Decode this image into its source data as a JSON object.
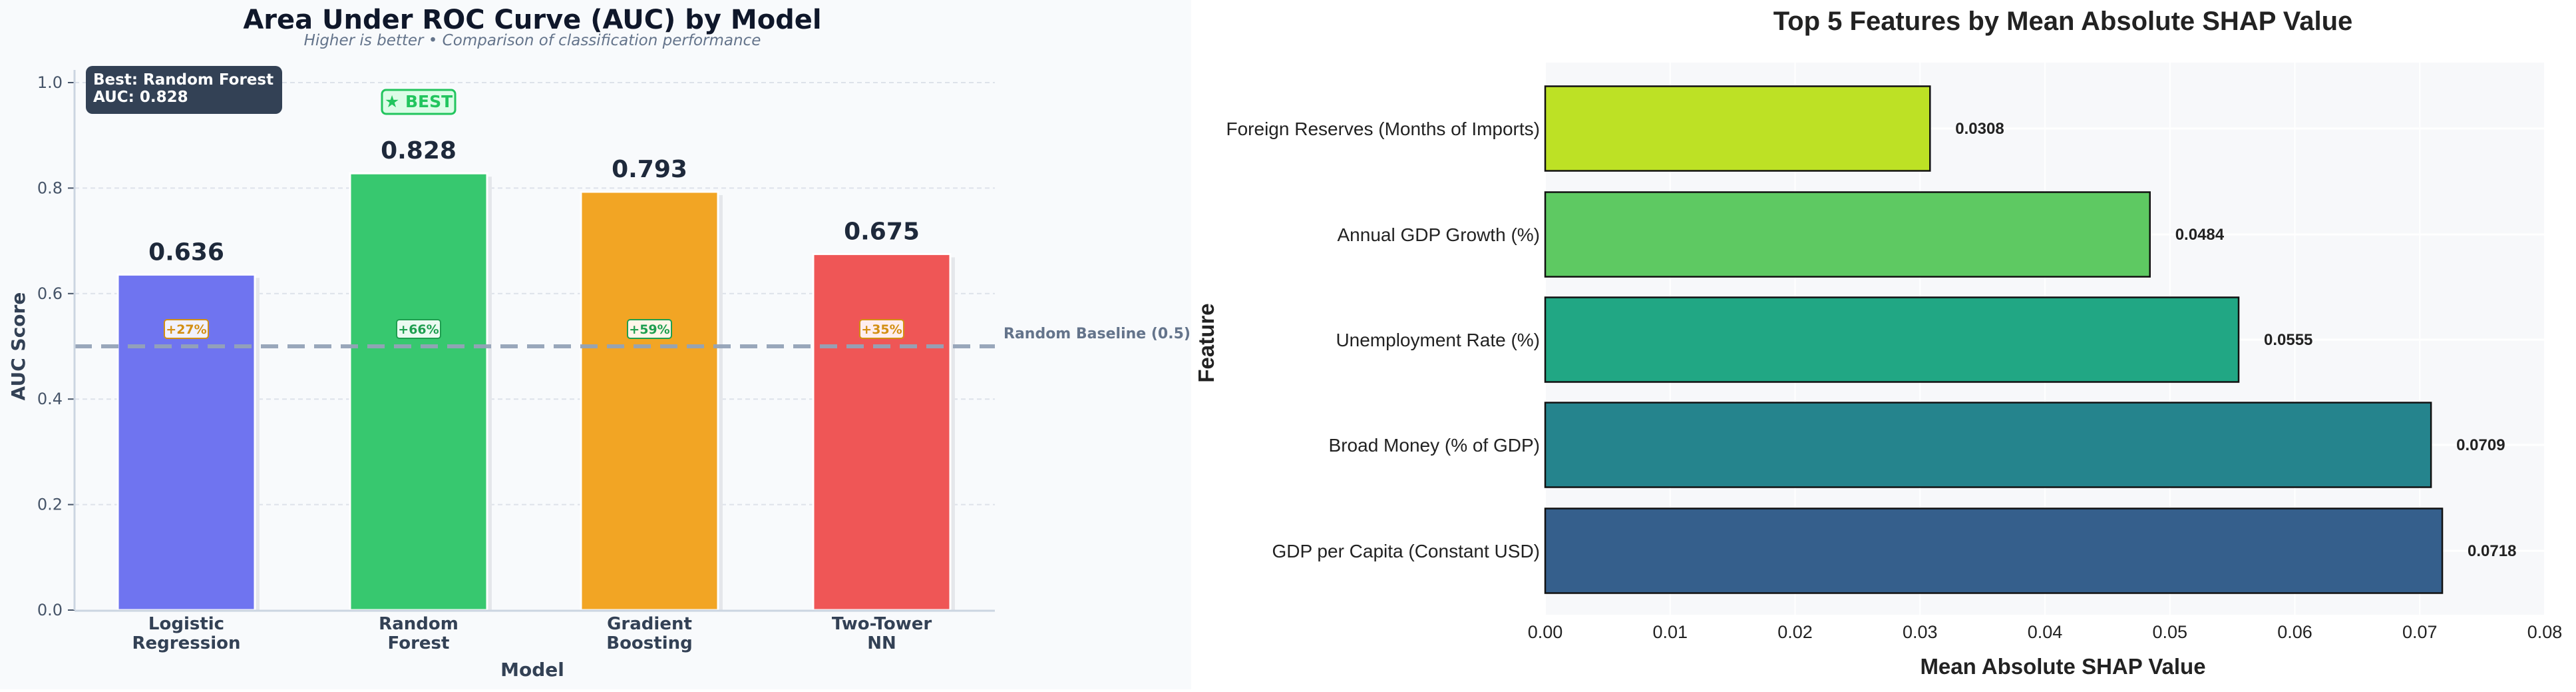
{
  "chart_data": [
    {
      "type": "bar",
      "title": "Area Under ROC Curve (AUC) by Model",
      "subtitle": "Higher is better • Comparison of classification performance",
      "xlabel": "Model",
      "ylabel": "AUC Score",
      "ylim": [
        0,
        1.05
      ],
      "yticks": [
        "0.0",
        "0.2",
        "0.4",
        "0.6",
        "0.8",
        "1.0"
      ],
      "ytick_values": [
        0,
        0.2,
        0.4,
        0.6,
        0.8,
        1.0
      ],
      "grid": true,
      "categories": [
        "Logistic\nRegression",
        "Random\nForest",
        "Gradient\nBoosting",
        "Two-Tower\nNN"
      ],
      "category_lines": [
        [
          "Logistic",
          "Regression"
        ],
        [
          "Random",
          "Forest"
        ],
        [
          "Gradient",
          "Boosting"
        ],
        [
          "Two-Tower",
          "NN"
        ]
      ],
      "values": [
        0.636,
        0.828,
        0.793,
        0.675
      ],
      "value_labels": [
        "0.636",
        "0.828",
        "0.793",
        "0.675"
      ],
      "improvement_labels": [
        "+27%",
        "+66%",
        "+59%",
        "+35%"
      ],
      "colors": [
        "#6f74f0",
        "#37c86f",
        "#f2a524",
        "#ef5656"
      ],
      "improvement_badge_colors": [
        "#d38f12",
        "#1e9e4f",
        "#1e9e4f",
        "#d38f12"
      ],
      "baseline": {
        "value": 0.5,
        "label": "Random Baseline (0.5)",
        "color": "#94a3b8"
      },
      "best_badge": {
        "label": "★ BEST",
        "category_index": 1,
        "color": "#22c55e"
      },
      "annotation_box": {
        "lines": [
          "Best: Random Forest",
          "AUC: 0.828"
        ],
        "placement": "top-left"
      }
    },
    {
      "type": "bar",
      "orientation": "horizontal",
      "title": "Top 5 Features by Mean Absolute SHAP Value",
      "xlabel": "Mean Absolute SHAP Value",
      "ylabel": "Feature",
      "xlim": [
        0,
        0.08
      ],
      "xticks": [
        "0.00",
        "0.01",
        "0.02",
        "0.03",
        "0.04",
        "0.05",
        "0.06",
        "0.07",
        "0.08"
      ],
      "xtick_values": [
        0,
        0.01,
        0.02,
        0.03,
        0.04,
        0.05,
        0.06,
        0.07,
        0.08
      ],
      "categories": [
        "Foreign Reserves (Months of Imports)",
        "Annual GDP Growth (%)",
        "Unemployment Rate (%)",
        "Broad Money (% of GDP)",
        "GDP per Capita (Constant USD)"
      ],
      "values": [
        0.0308,
        0.0484,
        0.0555,
        0.0709,
        0.0718
      ],
      "value_labels": [
        "0.0308",
        "0.0484",
        "0.0555",
        "0.0709",
        "0.0718"
      ],
      "colors": [
        "#bde125",
        "#5ec962",
        "#21a784",
        "#25848d",
        "#355f8c"
      ]
    }
  ]
}
